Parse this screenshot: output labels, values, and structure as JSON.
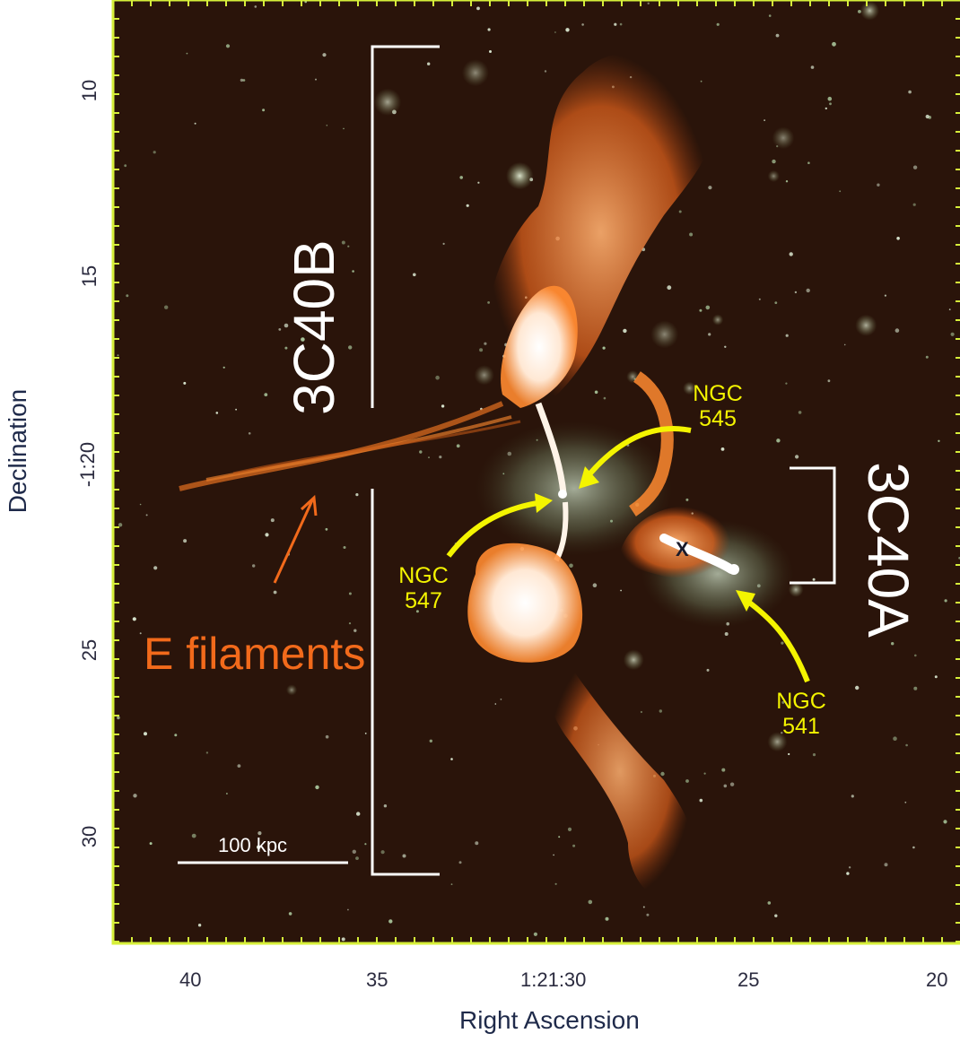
{
  "figure": {
    "x_axis_title": "Right Ascension",
    "y_axis_title": "Declination",
    "x_ticks": [
      "40",
      "35",
      "1:21:30",
      "25",
      "20"
    ],
    "y_ticks": [
      "10",
      "15",
      "-1:20",
      "25",
      "30"
    ],
    "labels": {
      "source_b": "3C40B",
      "source_a": "3C40A",
      "filaments": "E filaments",
      "scale_bar": "100 kpc",
      "ngc545_line1": "NGC",
      "ngc545_line2": "545",
      "ngc547_line1": "NGC",
      "ngc547_line2": "547",
      "ngc541_line1": "NGC",
      "ngc541_line2": "541",
      "x_mark": "X"
    },
    "colors": {
      "background": "#2a140a",
      "frame": "#d6ef3a",
      "radio_emission": "#ff7a20",
      "galaxy_labels": "#f4f400",
      "filament_label": "#f26a1b",
      "bracket": "#ffffff"
    }
  }
}
